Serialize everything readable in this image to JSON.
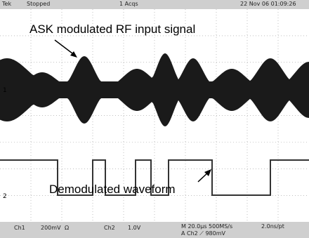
{
  "header": {
    "brand": "Tek",
    "state": "Stopped",
    "acquisitions": "1 Acqs",
    "timestamp": "22 Nov 06 01:09:26"
  },
  "annotations": {
    "rf_signal": "ASK modulated RF input signal",
    "demodulated": "Demodulated waveform"
  },
  "markers": {
    "ch1": "1",
    "ch2": "2"
  },
  "footer": {
    "ch1_label": "Ch1",
    "ch1_scale": "200mV",
    "ch1_coupling": "Ω",
    "ch2_label": "Ch2",
    "ch2_scale": "1.0V",
    "timebase": "M 20.0µs 500MS/s",
    "resolution": "2.0ns/pt",
    "trigger": "A Ch2 ⟋ 980mV"
  }
}
